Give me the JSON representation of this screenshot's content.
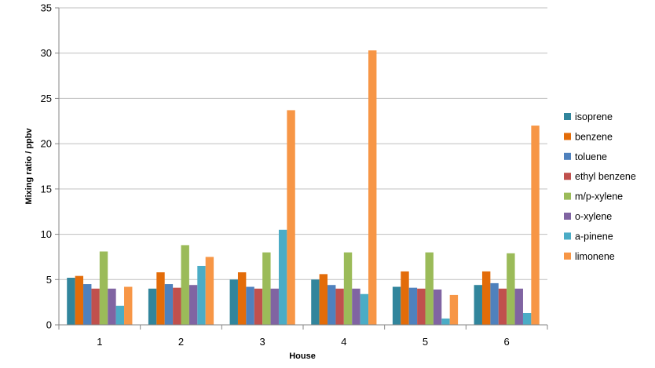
{
  "chart_data": {
    "type": "bar",
    "xlabel": "House",
    "ylabel": "Mixing ratio / ppbv",
    "ylim": [
      0,
      35
    ],
    "yticks": [
      0,
      5,
      10,
      15,
      20,
      25,
      30,
      35
    ],
    "categories": [
      "1",
      "2",
      "3",
      "4",
      "5",
      "6"
    ],
    "grid": "horizontal",
    "legend_position": "right",
    "series": [
      {
        "name": "isoprene",
        "color": "#31859c",
        "values": [
          5.2,
          4.0,
          5.0,
          5.0,
          4.2,
          4.4
        ]
      },
      {
        "name": "benzene",
        "color": "#e36c09",
        "values": [
          5.4,
          5.8,
          5.8,
          5.6,
          5.9,
          5.9
        ]
      },
      {
        "name": "toluene",
        "color": "#4f81bd",
        "values": [
          4.5,
          4.5,
          4.2,
          4.4,
          4.1,
          4.6
        ]
      },
      {
        "name": "ethyl benzene",
        "color": "#c0504d",
        "values": [
          4.0,
          4.1,
          4.0,
          4.0,
          4.0,
          4.0
        ]
      },
      {
        "name": "m/p-xylene",
        "color": "#9bbb59",
        "values": [
          8.1,
          8.8,
          8.0,
          8.0,
          8.0,
          7.9
        ]
      },
      {
        "name": "o-xylene",
        "color": "#8064a2",
        "values": [
          4.0,
          4.4,
          4.0,
          4.0,
          3.9,
          4.0
        ]
      },
      {
        "name": "a-pinene",
        "color": "#4bacc6",
        "values": [
          2.1,
          6.5,
          10.5,
          3.4,
          0.7,
          1.3
        ]
      },
      {
        "name": "limonene",
        "color": "#f79646",
        "values": [
          4.2,
          7.5,
          23.7,
          30.3,
          3.3,
          22.0
        ]
      }
    ]
  }
}
